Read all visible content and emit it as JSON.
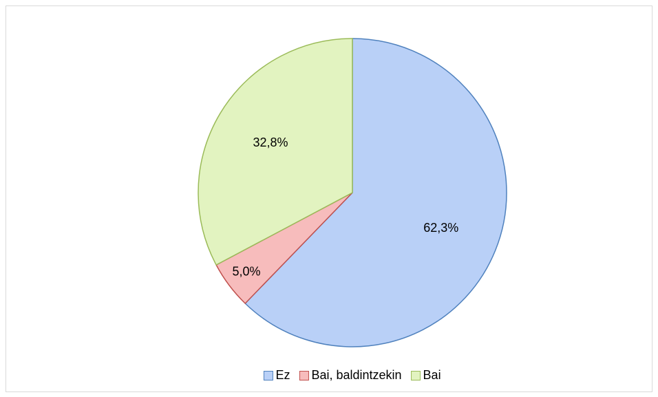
{
  "chart_data": {
    "type": "pie",
    "categories": [
      "Ez",
      "Bai, baldintzekin",
      "Bai"
    ],
    "values": [
      62.3,
      5.0,
      32.8
    ],
    "value_labels": [
      "62,3%",
      "5,0%",
      "32,8%"
    ],
    "colors": [
      "#b9d0f7",
      "#f7bcbc",
      "#e2f3c0"
    ],
    "edge_colors": [
      "#4f81bd",
      "#c0504d",
      "#9bbb59"
    ],
    "legend": "bottom"
  }
}
